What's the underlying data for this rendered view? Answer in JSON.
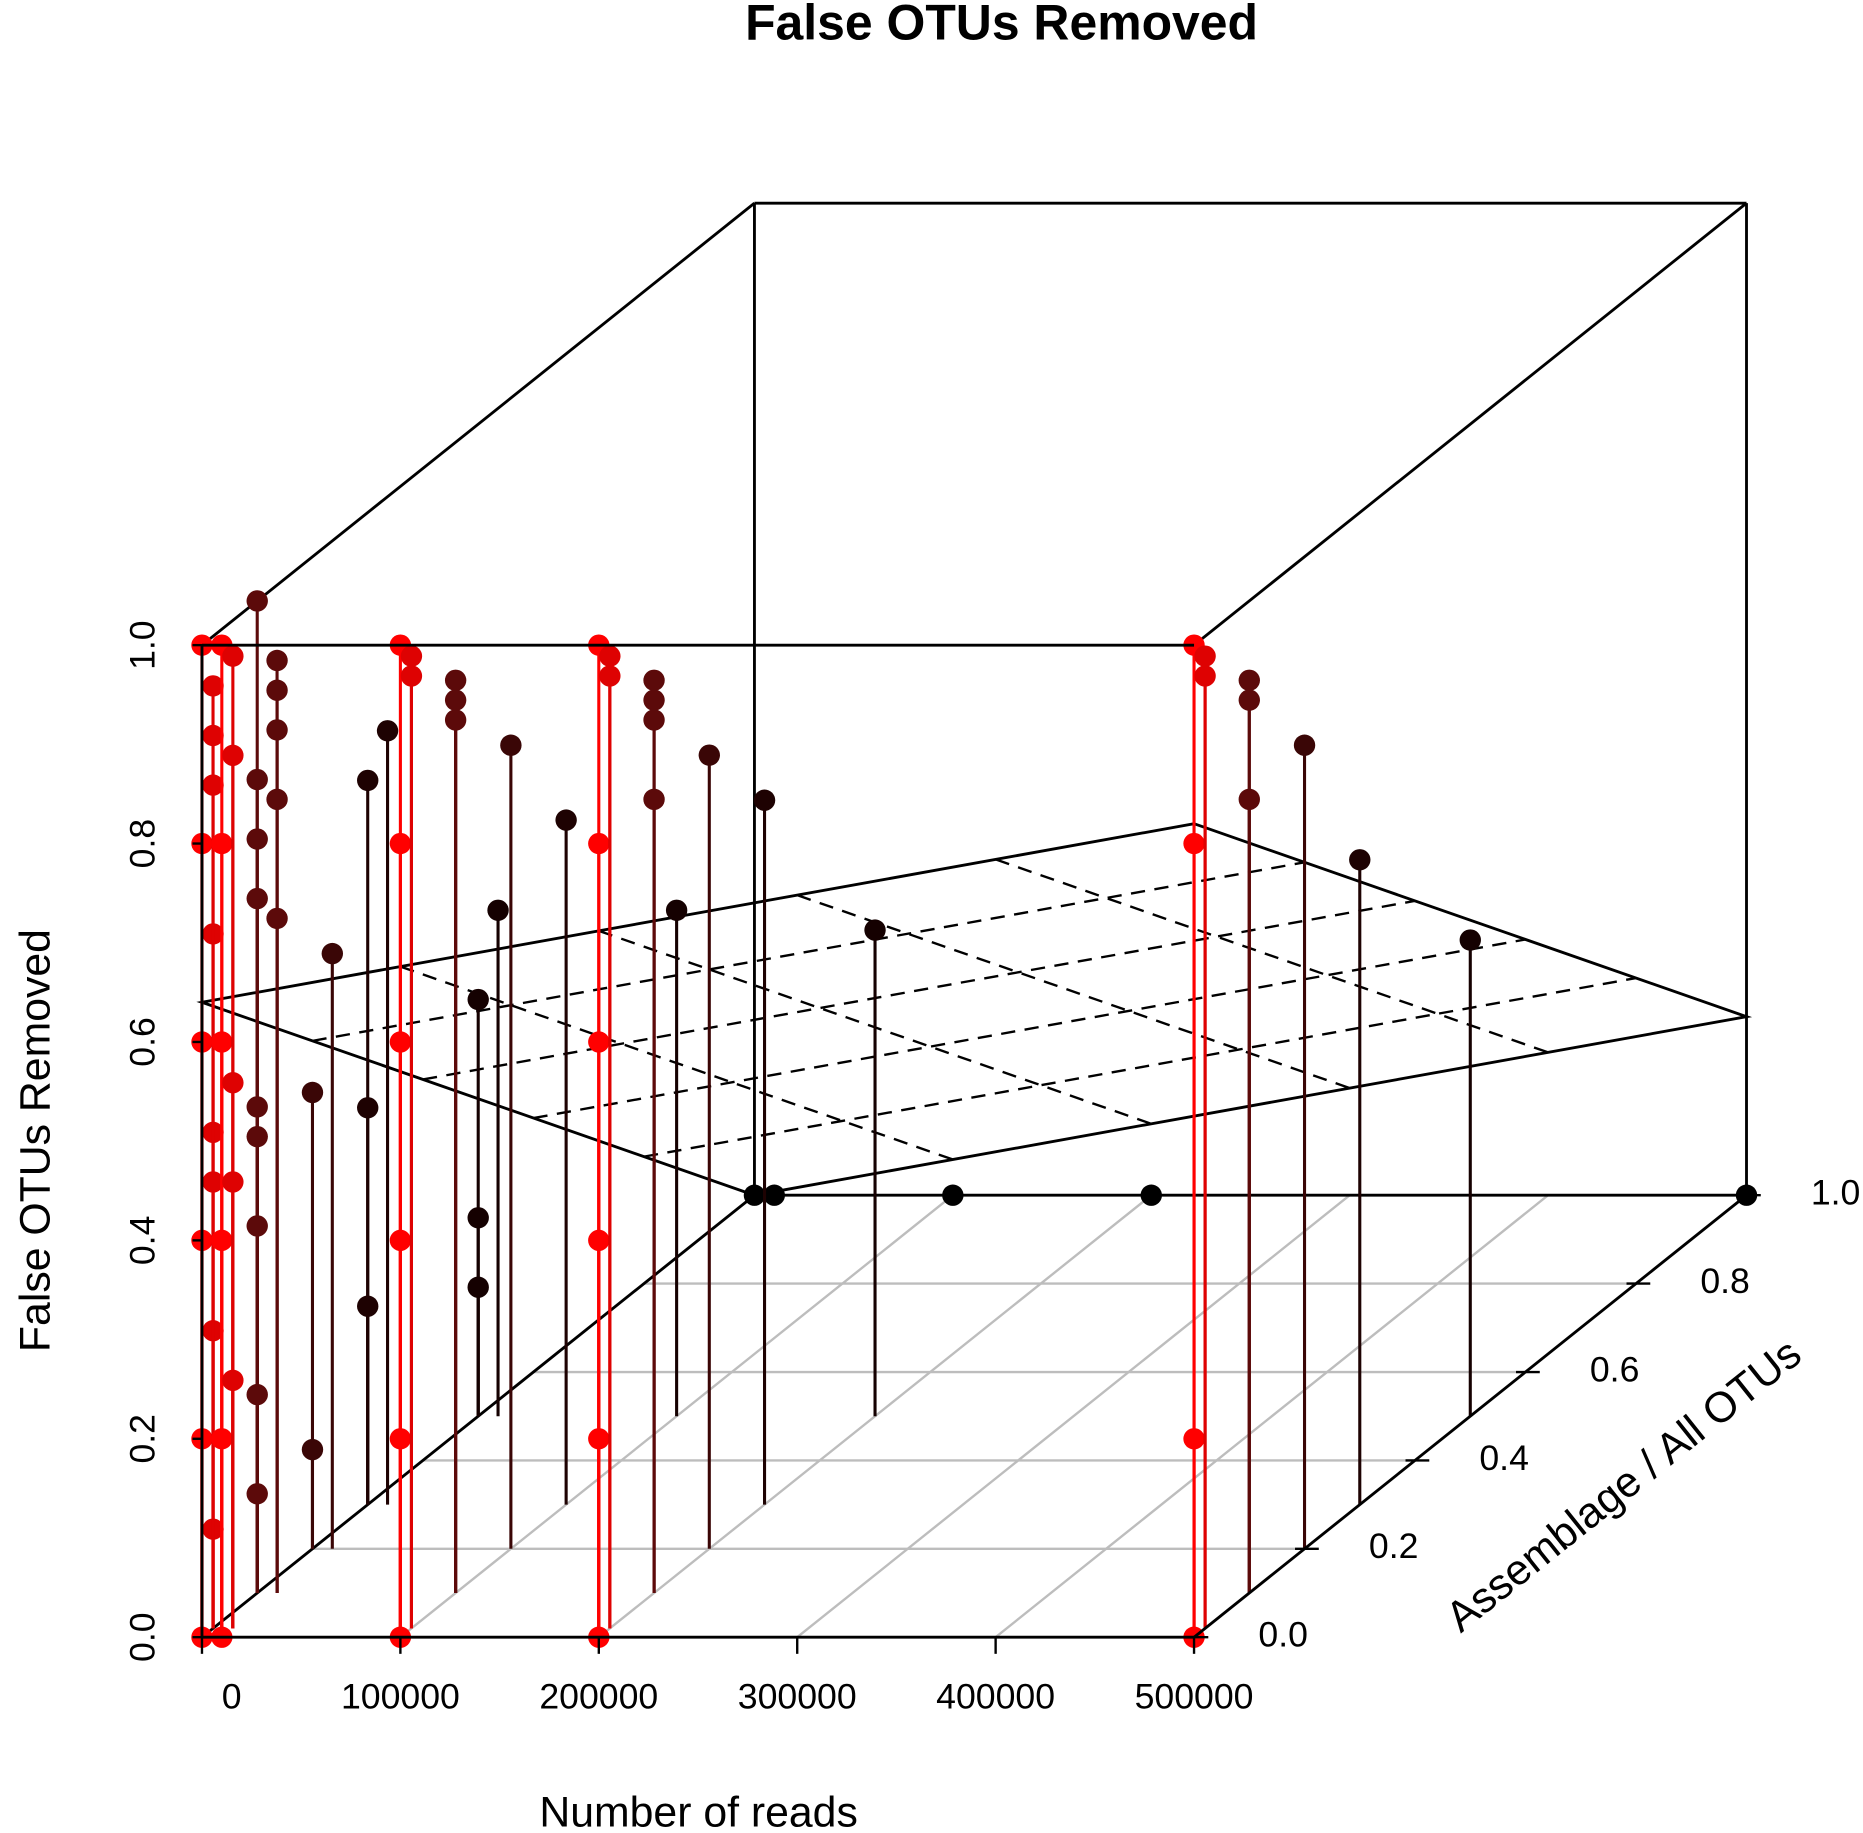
{
  "chart_data": {
    "type": "scatter3d",
    "title": "False OTUs Removed",
    "xlabel": "Number of reads",
    "ylabel": "Assemblage / All OTUs",
    "zlabel": "False OTUs Removed",
    "xlim": [
      0,
      500000
    ],
    "ylim": [
      0,
      1
    ],
    "zlim": [
      0,
      1
    ],
    "xticks": [
      0,
      100000,
      200000,
      300000,
      400000,
      500000
    ],
    "yticks": [
      {
        "value": 0,
        "label": "0.0"
      },
      {
        "value": 0.2,
        "label": "0.2"
      },
      {
        "value": 0.4,
        "label": "0.4"
      },
      {
        "value": 0.6,
        "label": "0.6"
      },
      {
        "value": 0.8,
        "label": "0.8"
      },
      {
        "value": 1,
        "label": "1.0"
      }
    ],
    "zticks": [
      {
        "value": 0,
        "label": "0.0"
      },
      {
        "value": 0.2,
        "label": "0.2"
      },
      {
        "value": 0.4,
        "label": "0.4"
      },
      {
        "value": 0.6,
        "label": "0.6"
      },
      {
        "value": 0.8,
        "label": "0.8"
      },
      {
        "value": 1,
        "label": "1.0"
      }
    ],
    "grid": true,
    "plane_z": [
      0.64,
      0.82,
      0.18,
      0
    ],
    "color_stops": [
      {
        "y": 0,
        "color": "#ff0000"
      },
      {
        "y": 0.1,
        "color": "#5c0a0a"
      },
      {
        "y": 0.2,
        "color": "#3a0606"
      },
      {
        "y": 0.3,
        "color": "#1e0202"
      },
      {
        "y": 1,
        "color": "#000000"
      }
    ],
    "x": [
      0,
      0,
      0,
      0,
      0,
      0,
      0,
      0,
      0,
      0,
      0,
      0,
      0,
      0,
      10000,
      10000,
      10000,
      10000,
      10000,
      10000,
      10000,
      10000,
      10000,
      10000,
      10000,
      0,
      0,
      0,
      0,
      0,
      0,
      0,
      0,
      0,
      10000,
      10000,
      10000,
      10000,
      10000,
      0,
      0,
      10000,
      0,
      0,
      0,
      10000,
      0,
      0,
      0,
      10000,
      0,
      10000,
      100000,
      100000,
      100000,
      100000,
      100000,
      100000,
      100000,
      100000,
      100000,
      100000,
      100000,
      100000,
      100000,
      100000,
      100000,
      200000,
      200000,
      200000,
      200000,
      200000,
      200000,
      200000,
      200000,
      200000,
      200000,
      200000,
      200000,
      200000,
      200000,
      200000,
      200000,
      500000,
      500000,
      500000,
      500000,
      500000,
      500000,
      500000,
      500000,
      500000,
      500000,
      500000,
      500000,
      500000
    ],
    "y": [
      0,
      0,
      0,
      0,
      0,
      0,
      0.02,
      0.02,
      0.02,
      0.02,
      0.02,
      0.02,
      0.02,
      0.02,
      0,
      0,
      0,
      0,
      0,
      0,
      0.02,
      0.02,
      0.02,
      0.02,
      0.02,
      0.1,
      0.1,
      0.1,
      0.1,
      0.1,
      0.1,
      0.1,
      0.1,
      0.1,
      0.1,
      0.1,
      0.1,
      0.1,
      0.1,
      0.2,
      0.2,
      0.2,
      0.3,
      0.3,
      0.3,
      0.3,
      0.5,
      0.5,
      0.5,
      0.5,
      1,
      1,
      0,
      0,
      0,
      0,
      0,
      0,
      0.02,
      0.02,
      0.1,
      0.1,
      0.1,
      0.2,
      0.3,
      0.5,
      1,
      0,
      0,
      0,
      0,
      0,
      0,
      0.02,
      0.02,
      0.1,
      0.1,
      0.1,
      0.1,
      0.2,
      0.3,
      0.5,
      1,
      0,
      0,
      0,
      0,
      0.02,
      0.02,
      0.1,
      0.1,
      0.1,
      0.2,
      0.3,
      0.5,
      1
    ],
    "z": [
      0,
      0.2,
      0.4,
      0.6,
      0.8,
      1,
      0.1,
      0.3,
      0.5,
      0.7,
      0.9,
      0.95,
      0.85,
      0.45,
      0,
      0.2,
      0.4,
      0.6,
      0.8,
      1,
      0.98,
      0.88,
      0.55,
      0.45,
      0.25,
      1,
      0.82,
      0.76,
      0.7,
      0.49,
      0.46,
      0.37,
      0.2,
      0.1,
      0.94,
      0.91,
      0.87,
      0.8,
      0.68,
      0.46,
      0.1,
      0.6,
      0.73,
      0.4,
      0.2,
      0.78,
      0.42,
      0.2,
      0.13,
      0.51,
      0,
      0,
      0,
      0.2,
      0.4,
      0.6,
      0.8,
      1,
      0.98,
      0.96,
      0.92,
      0.9,
      0.88,
      0.81,
      0.69,
      0.51,
      0,
      0,
      0.2,
      0.4,
      0.6,
      0.8,
      1,
      0.98,
      0.96,
      0.92,
      0.9,
      0.88,
      0.8,
      0.8,
      0.71,
      0.49,
      0,
      0,
      0.2,
      0.8,
      1,
      0.98,
      0.96,
      0.92,
      0.9,
      0.8,
      0.81,
      0.65,
      0.48,
      0
    ]
  }
}
